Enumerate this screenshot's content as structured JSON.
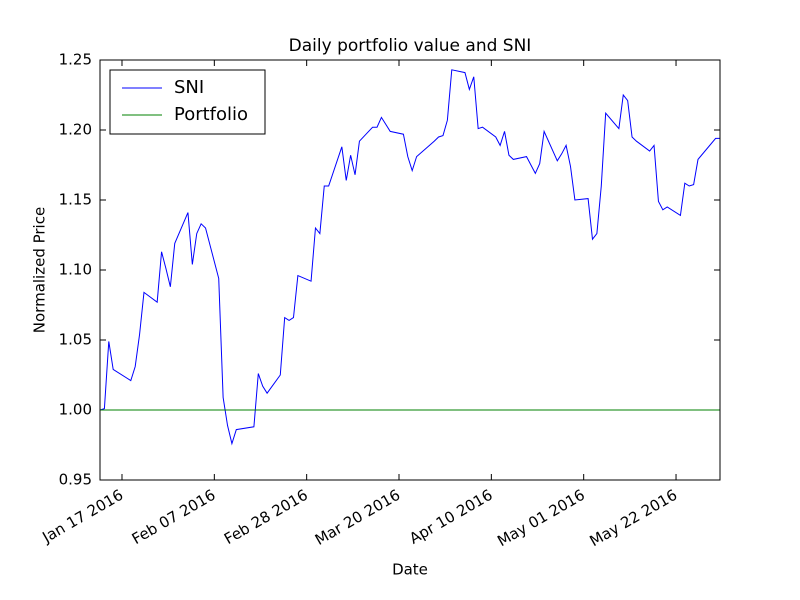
{
  "chart_data": {
    "type": "line",
    "title": "Daily portfolio value and SNI",
    "x_label": "Date",
    "y_label": "Normalized Price",
    "legend": "upper left",
    "grid": false,
    "xlim": [
      "2016-01-12",
      "2016-06-01"
    ],
    "xticks": [
      {
        "value": "2016-01-17",
        "label": "Jan 17 2016"
      },
      {
        "value": "2016-02-07",
        "label": "Feb 07 2016"
      },
      {
        "value": "2016-02-28",
        "label": "Feb 28 2016"
      },
      {
        "value": "2016-03-20",
        "label": "Mar 20 2016"
      },
      {
        "value": "2016-04-10",
        "label": "Apr 10 2016"
      },
      {
        "value": "2016-05-01",
        "label": "May 01 2016"
      },
      {
        "value": "2016-05-22",
        "label": "May 22 2016"
      }
    ],
    "ylim": [
      0.95,
      1.25
    ],
    "yticks": [
      0.95,
      {
        "value": 1,
        "label": "1.00"
      },
      1.05,
      {
        "value": 1.1,
        "label": "1.10"
      },
      1.15,
      {
        "value": 1.2,
        "label": "1.20"
      },
      1.25
    ],
    "x": [
      "2016-01-12",
      "2016-01-13",
      "2016-01-14",
      "2016-01-15",
      "2016-01-19",
      "2016-01-20",
      "2016-01-21",
      "2016-01-22",
      "2016-01-25",
      "2016-01-26",
      "2016-01-27",
      "2016-01-28",
      "2016-01-29",
      "2016-02-01",
      "2016-02-02",
      "2016-02-03",
      "2016-02-04",
      "2016-02-05",
      "2016-02-08",
      "2016-02-09",
      "2016-02-10",
      "2016-02-11",
      "2016-02-12",
      "2016-02-16",
      "2016-02-17",
      "2016-02-18",
      "2016-02-19",
      "2016-02-22",
      "2016-02-23",
      "2016-02-24",
      "2016-02-25",
      "2016-02-26",
      "2016-02-29",
      "2016-03-01",
      "2016-03-02",
      "2016-03-03",
      "2016-03-04",
      "2016-03-07",
      "2016-03-08",
      "2016-03-09",
      "2016-03-10",
      "2016-03-11",
      "2016-03-14",
      "2016-03-15",
      "2016-03-16",
      "2016-03-17",
      "2016-03-18",
      "2016-03-21",
      "2016-03-22",
      "2016-03-23",
      "2016-03-24",
      "2016-03-28",
      "2016-03-29",
      "2016-03-30",
      "2016-03-31",
      "2016-04-01",
      "2016-04-04",
      "2016-04-05",
      "2016-04-06",
      "2016-04-07",
      "2016-04-08",
      "2016-04-11",
      "2016-04-12",
      "2016-04-13",
      "2016-04-14",
      "2016-04-15",
      "2016-04-18",
      "2016-04-19",
      "2016-04-20",
      "2016-04-21",
      "2016-04-22",
      "2016-04-25",
      "2016-04-26",
      "2016-04-27",
      "2016-04-28",
      "2016-04-29",
      "2016-05-02",
      "2016-05-03",
      "2016-05-04",
      "2016-05-05",
      "2016-05-06",
      "2016-05-09",
      "2016-05-10",
      "2016-05-11",
      "2016-05-12",
      "2016-05-13",
      "2016-05-16",
      "2016-05-17",
      "2016-05-18",
      "2016-05-19",
      "2016-05-20",
      "2016-05-23",
      "2016-05-24",
      "2016-05-25",
      "2016-05-26",
      "2016-05-27",
      "2016-05-31",
      "2016-06-01"
    ],
    "series": [
      {
        "name": "SNI",
        "color": "#0000ff",
        "values": [
          1.0,
          1.001,
          1.049,
          1.029,
          1.021,
          1.031,
          1.054,
          1.084,
          1.077,
          1.113,
          1.101,
          1.088,
          1.119,
          1.141,
          1.104,
          1.126,
          1.133,
          1.13,
          1.094,
          1.009,
          0.989,
          0.976,
          0.986,
          0.988,
          1.026,
          1.017,
          1.012,
          1.025,
          1.066,
          1.064,
          1.066,
          1.096,
          1.092,
          1.13,
          1.126,
          1.16,
          1.16,
          1.188,
          1.164,
          1.182,
          1.168,
          1.192,
          1.202,
          1.202,
          1.209,
          1.204,
          1.199,
          1.197,
          1.181,
          1.171,
          1.181,
          1.192,
          1.195,
          1.196,
          1.207,
          1.243,
          1.241,
          1.229,
          1.238,
          1.201,
          1.202,
          1.195,
          1.189,
          1.199,
          1.182,
          1.179,
          1.181,
          1.175,
          1.169,
          1.176,
          1.199,
          1.178,
          1.183,
          1.189,
          1.174,
          1.15,
          1.151,
          1.122,
          1.126,
          1.16,
          1.212,
          1.201,
          1.225,
          1.221,
          1.195,
          1.192,
          1.185,
          1.189,
          1.149,
          1.143,
          1.145,
          1.139,
          1.162,
          1.16,
          1.161,
          1.179,
          1.194,
          1.194
        ]
      },
      {
        "name": "Portfolio",
        "color": "#008000",
        "values": [
          1,
          1,
          1,
          1,
          1,
          1,
          1,
          1,
          1,
          1,
          1,
          1,
          1,
          1,
          1,
          1,
          1,
          1,
          1,
          1,
          1,
          1,
          1,
          1,
          1,
          1,
          1,
          1,
          1,
          1,
          1,
          1,
          1,
          1,
          1,
          1,
          1,
          1,
          1,
          1,
          1,
          1,
          1,
          1,
          1,
          1,
          1,
          1,
          1,
          1,
          1,
          1,
          1,
          1,
          1,
          1,
          1,
          1,
          1,
          1,
          1,
          1,
          1,
          1,
          1,
          1,
          1,
          1,
          1,
          1,
          1,
          1,
          1,
          1,
          1,
          1,
          1,
          1,
          1,
          1,
          1,
          1,
          1,
          1,
          1,
          1,
          1,
          1,
          1,
          1,
          1,
          1,
          1,
          1,
          1,
          1,
          1,
          1
        ]
      }
    ]
  }
}
